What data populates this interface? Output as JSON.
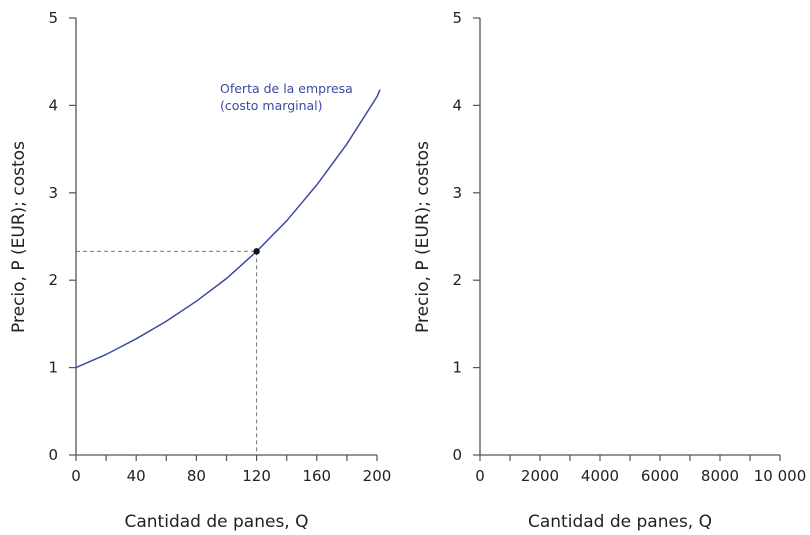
{
  "chart_data": [
    {
      "type": "line",
      "xlabel": "Cantidad de panes, Q",
      "ylabel": "Precio, P (EUR); costos",
      "xlim": [
        0,
        200
      ],
      "ylim": [
        0,
        5
      ],
      "xticks": [
        "0",
        "40",
        "80",
        "120",
        "160",
        "200"
      ],
      "yticks": [
        "0",
        "1",
        "2",
        "3",
        "4",
        "5"
      ],
      "grid": false,
      "series": [
        {
          "name": "Oferta de la empresa (costo marginal)",
          "color": "#3a4aa6",
          "x": [
            0,
            20,
            40,
            60,
            80,
            100,
            120,
            140,
            160,
            180,
            200,
            202
          ],
          "y": [
            1.0,
            1.15,
            1.33,
            1.53,
            1.76,
            2.02,
            2.33,
            2.68,
            3.09,
            3.56,
            4.1,
            4.18
          ]
        }
      ],
      "annotations": {
        "label_line1": "Oferta de la empresa",
        "label_line2": "(costo marginal)",
        "highlight_point": {
          "x": 120,
          "y": 2.33
        }
      }
    },
    {
      "type": "line",
      "xlabel": "Cantidad de panes, Q",
      "ylabel": "Precio, P (EUR); costos",
      "xlim": [
        0,
        10000
      ],
      "ylim": [
        0,
        5
      ],
      "xticks": [
        "0",
        "2000",
        "4000",
        "6000",
        "8000",
        "10 000"
      ],
      "yticks": [
        "0",
        "1",
        "2",
        "3",
        "4",
        "5"
      ],
      "grid": false,
      "series": []
    }
  ]
}
